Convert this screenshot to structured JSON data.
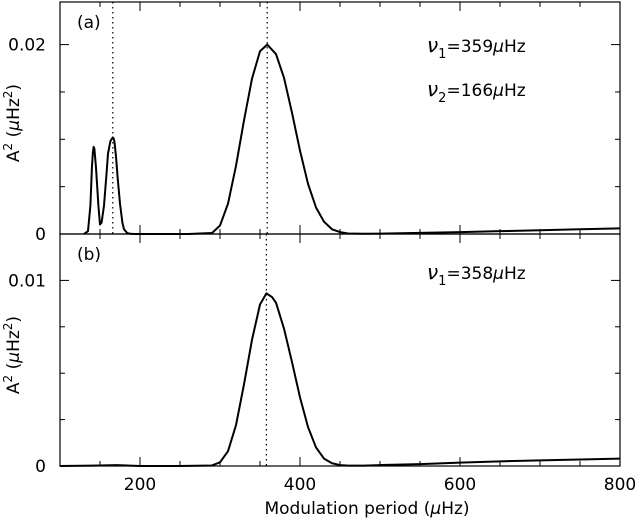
{
  "chart_data": [
    {
      "type": "line",
      "panel_label": "(a)",
      "xlabel": "Modulation period (μHz)",
      "ylabel": "A² (μHz²)",
      "xlim": [
        100,
        800
      ],
      "ylim": [
        0,
        0.0245
      ],
      "yticks": [
        {
          "value": 0,
          "label": "0"
        },
        {
          "value": 0.02,
          "label": "0.02"
        }
      ],
      "xticks": [
        {
          "value": 200,
          "label": ""
        },
        {
          "value": 400,
          "label": ""
        },
        {
          "value": 600,
          "label": ""
        },
        {
          "value": 800,
          "label": ""
        }
      ],
      "vlines": [
        166,
        359
      ],
      "annotations": [
        {
          "greek": "ν",
          "sub": "1",
          "text": "=359",
          "unit_greek": "μ",
          "unit": "Hz"
        },
        {
          "greek": "ν",
          "sub": "2",
          "text": "=166",
          "unit_greek": "μ",
          "unit": "Hz"
        }
      ],
      "series": [
        {
          "x": [
            130,
            135,
            138,
            140,
            141,
            142,
            143,
            145,
            148,
            150,
            152,
            155,
            158,
            160,
            163,
            166,
            167,
            168,
            170,
            172,
            175,
            178,
            180,
            184,
            188,
            192,
            200,
            220,
            260,
            290,
            300,
            310,
            320,
            330,
            340,
            350,
            359,
            370,
            380,
            390,
            400,
            410,
            420,
            430,
            440,
            450,
            460,
            480,
            500,
            550,
            600,
            650,
            700,
            750,
            800
          ],
          "y": [
            0,
            0.0003,
            0.003,
            0.0072,
            0.0085,
            0.0092,
            0.009,
            0.007,
            0.003,
            0.001,
            0.0012,
            0.003,
            0.0062,
            0.0085,
            0.0098,
            0.0102,
            0.0101,
            0.0098,
            0.0082,
            0.006,
            0.0032,
            0.0012,
            0.0005,
            0.0001,
            2e-05,
            0,
            0,
            0,
            0,
            0.0001,
            0.0009,
            0.0032,
            0.0072,
            0.012,
            0.0164,
            0.0193,
            0.02,
            0.019,
            0.0165,
            0.0128,
            0.0088,
            0.0053,
            0.0028,
            0.0013,
            0.0005,
            0.0002,
            5e-05,
            2e-05,
            4e-05,
            0.00012,
            0.0002,
            0.0003,
            0.0004,
            0.0005,
            0.0006
          ]
        }
      ]
    },
    {
      "type": "line",
      "panel_label": "(b)",
      "xlabel": "Modulation period (μHz)",
      "ylabel": "A² (μHz²)",
      "xlim": [
        100,
        800
      ],
      "ylim": [
        0,
        0.0125
      ],
      "yticks": [
        {
          "value": 0,
          "label": "0"
        },
        {
          "value": 0.01,
          "label": "0.01"
        }
      ],
      "xticks": [
        {
          "value": 200,
          "label": "200"
        },
        {
          "value": 400,
          "label": "400"
        },
        {
          "value": 600,
          "label": "600"
        },
        {
          "value": 800,
          "label": "800"
        }
      ],
      "vlines": [
        358
      ],
      "annotations": [
        {
          "greek": "ν",
          "sub": "1",
          "text": "=358",
          "unit_greek": "μ",
          "unit": "Hz"
        }
      ],
      "series": [
        {
          "x": [
            100,
            140,
            170,
            200,
            250,
            290,
            300,
            310,
            320,
            330,
            340,
            350,
            358,
            365,
            370,
            380,
            390,
            400,
            410,
            420,
            430,
            440,
            450,
            460,
            480,
            500,
            550,
            600,
            650,
            700,
            750,
            800
          ],
          "y": [
            0,
            2e-05,
            5e-05,
            0,
            0,
            3e-05,
            0.0002,
            0.0008,
            0.0022,
            0.0044,
            0.0068,
            0.0087,
            0.0093,
            0.0091,
            0.0088,
            0.0074,
            0.0056,
            0.0037,
            0.0021,
            0.001,
            0.0004,
            0.00015,
            5e-05,
            2e-05,
            2e-05,
            5e-05,
            0.0001,
            0.00018,
            0.00025,
            0.0003,
            0.00035,
            0.0004
          ]
        }
      ]
    }
  ],
  "axis": {
    "xlabel": "Modulation period (",
    "xlabel_mu": "μ",
    "xlabel_unit": "Hz)",
    "ylabel_A": "A",
    "ylabel_sup": "2",
    "ylabel_open": " (",
    "ylabel_mu": "μ",
    "ylabel_Hz": "Hz",
    "ylabel_close": ")"
  }
}
